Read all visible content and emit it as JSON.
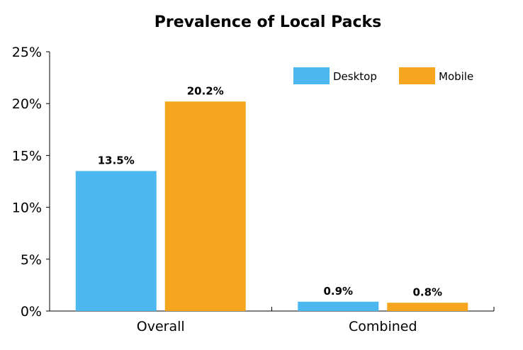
{
  "chart_data": {
    "type": "bar",
    "title": "Prevalence of Local Packs",
    "categories": [
      "Overall",
      "Combined"
    ],
    "series": [
      {
        "name": "Desktop",
        "values": [
          13.5,
          0.9
        ],
        "labels": [
          "13.5%",
          "0.9%"
        ],
        "color": "#4db8f0"
      },
      {
        "name": "Mobile",
        "values": [
          20.2,
          0.8
        ],
        "labels": [
          "20.2%",
          "0.8%"
        ],
        "color": "#f5a51e"
      }
    ],
    "ylim": [
      0,
      25
    ],
    "yticks": [
      0,
      5,
      10,
      15,
      20,
      25
    ],
    "ytick_labels": [
      "0%",
      "5%",
      "10%",
      "15%",
      "20%",
      "25%"
    ],
    "xlabel": "",
    "ylabel": "",
    "legend_position": "top-right",
    "grid": false
  }
}
